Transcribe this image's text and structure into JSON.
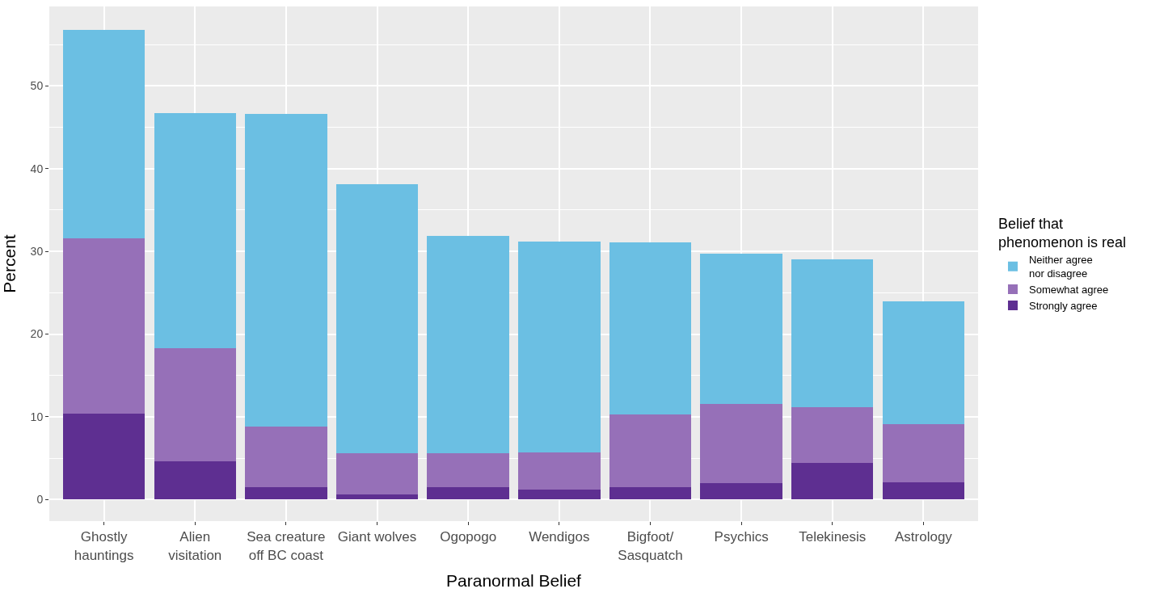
{
  "chart_data": {
    "type": "bar",
    "stacked": true,
    "xlabel": "Paranormal Belief",
    "ylabel": "Percent",
    "legend_title": "Belief that\nphenomenon is real",
    "categories": [
      "Ghostly\nhauntings",
      "Alien\nvisitation",
      "Sea creature\noff BC coast",
      "Giant wolves",
      "Ogopogo",
      "Wendigos",
      "Bigfoot/\nSasquatch",
      "Psychics",
      "Telekinesis",
      "Astrology"
    ],
    "series": [
      {
        "name": "Strongly agree",
        "color": "#5e2f91",
        "values": [
          10.4,
          4.6,
          1.5,
          0.6,
          1.5,
          1.2,
          1.5,
          2.0,
          4.4,
          2.1
        ]
      },
      {
        "name": "Somewhat agree",
        "color": "#9670b8",
        "values": [
          21.2,
          13.7,
          7.3,
          5.0,
          4.1,
          4.5,
          8.8,
          9.6,
          6.8,
          7.0
        ]
      },
      {
        "name": "Neither agree\nnor disagree",
        "color": "#6bbfe3",
        "values": [
          25.2,
          28.4,
          37.8,
          32.5,
          26.3,
          25.5,
          20.8,
          18.1,
          17.8,
          14.9
        ]
      }
    ],
    "ylim": [
      -2.6,
      59.6
    ],
    "yticks": [
      0,
      10,
      20,
      30,
      40,
      50
    ],
    "grid": true,
    "legend": "right"
  }
}
